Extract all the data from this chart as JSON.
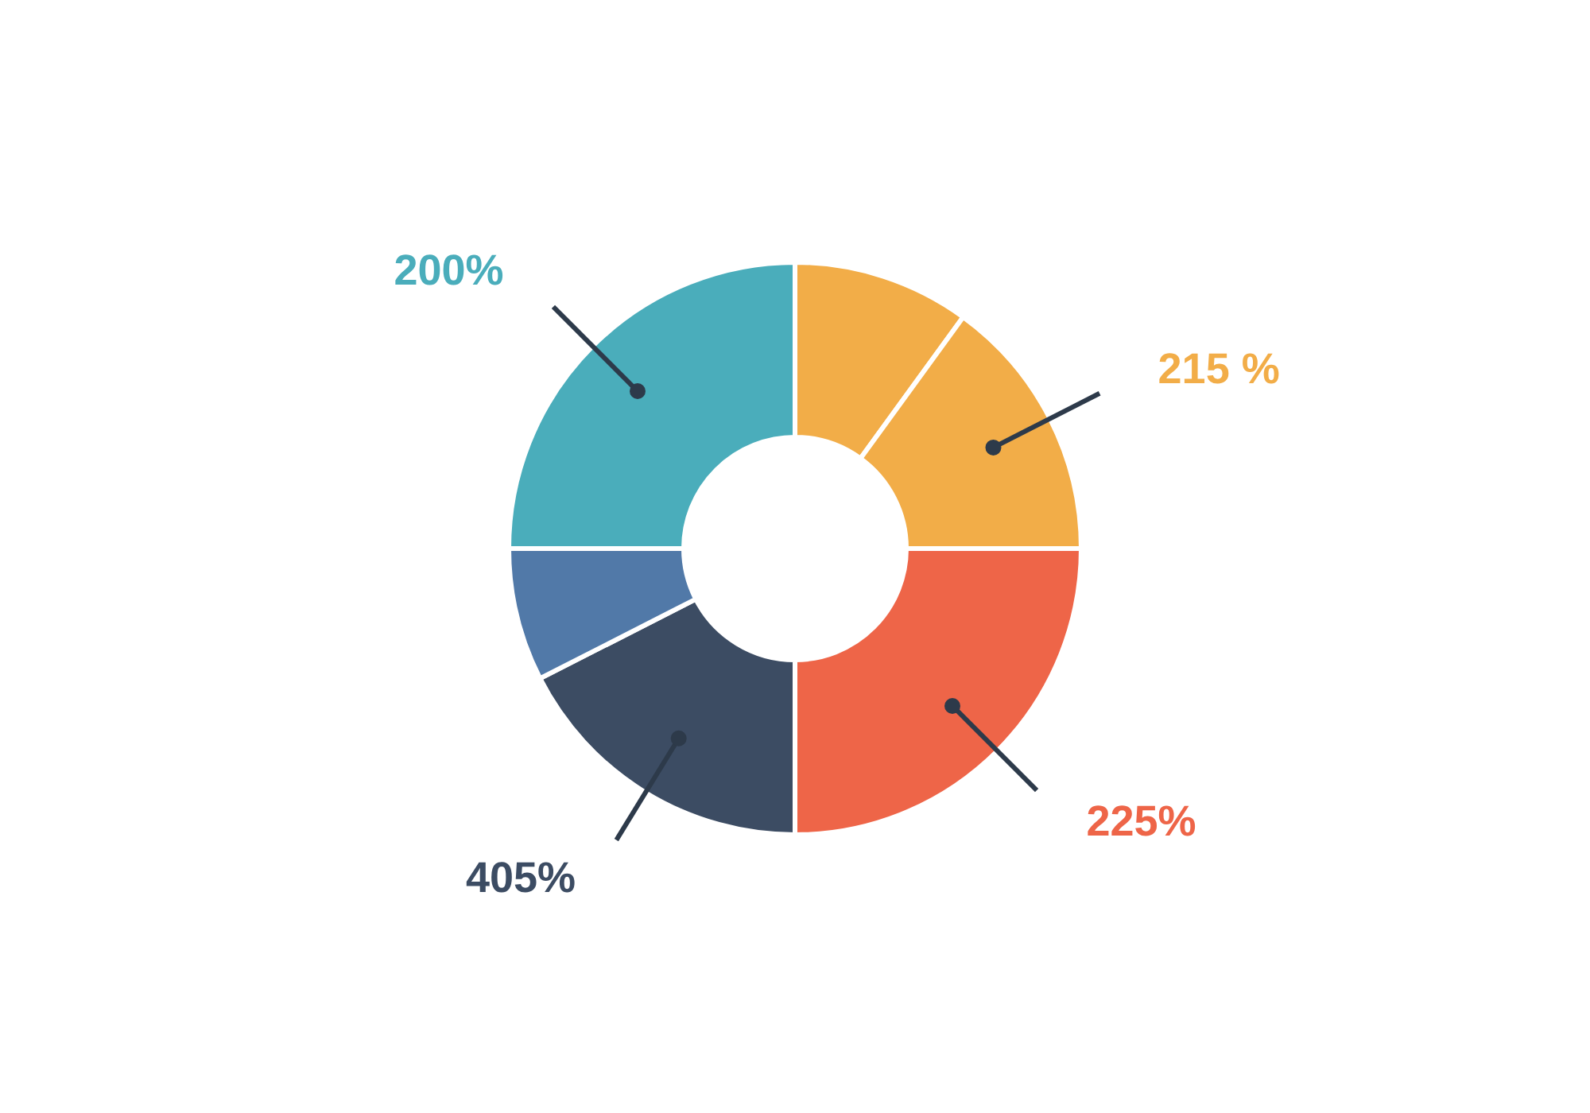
{
  "chart_data": {
    "type": "donut",
    "categories": [
      null,
      null,
      null,
      null,
      null,
      null
    ],
    "values": [
      10,
      15,
      25,
      17.5,
      7.5,
      25
    ],
    "colors": [
      "#f2ad48",
      "#f2ad48",
      "#ee6548",
      "#3c4c63",
      "#5179a8",
      "#4aadbb"
    ],
    "annotations": [
      "200%",
      "215 %",
      "405%",
      "225%"
    ]
  }
}
